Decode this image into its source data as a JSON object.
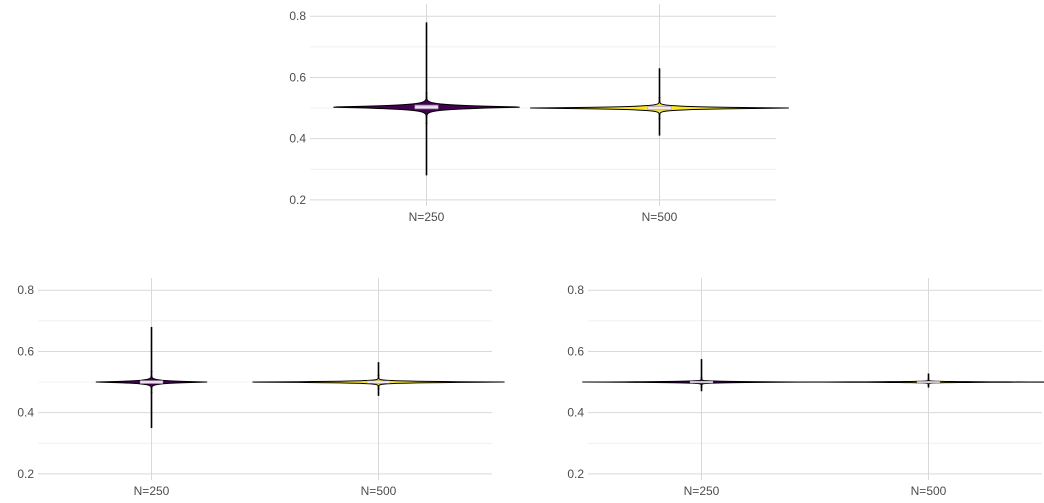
{
  "colors": {
    "N=250": "#440154",
    "N=500": "#fde725",
    "outline": "#000000",
    "box_fill": "#e0d6e6",
    "grid": "#d9d9d9"
  },
  "chart_data": [
    {
      "type": "violin",
      "title": "",
      "xlabel": "",
      "ylabel": "",
      "categories": [
        "N=250",
        "N=500"
      ],
      "y_ticks": [
        "0.2",
        "0.4",
        "0.6",
        "0.8"
      ],
      "ylim": [
        0.18,
        0.84
      ],
      "grid": true,
      "legend": "none",
      "series": [
        {
          "category": "N=250",
          "min": 0.28,
          "q1": 0.497,
          "median": 0.503,
          "q3": 0.51,
          "max": 0.78,
          "body_lo": 0.45,
          "body_hi": 0.55,
          "peak_halfwidth": 0.43
        },
        {
          "category": "N=500",
          "min": 0.41,
          "q1": 0.494,
          "median": 0.5,
          "q3": 0.506,
          "max": 0.63,
          "body_lo": 0.465,
          "body_hi": 0.535,
          "peak_halfwidth": 0.55
        }
      ]
    },
    {
      "type": "violin",
      "title": "",
      "xlabel": "",
      "ylabel": "",
      "categories": [
        "N=250",
        "N=500"
      ],
      "y_ticks": [
        "0.2",
        "0.4",
        "0.6",
        "0.8"
      ],
      "ylim": [
        0.18,
        0.84
      ],
      "grid": true,
      "legend": "none",
      "series": [
        {
          "category": "N=250",
          "min": 0.35,
          "q1": 0.495,
          "median": 0.5,
          "q3": 0.505,
          "max": 0.68,
          "body_lo": 0.465,
          "body_hi": 0.535,
          "peak_halfwidth": 0.24
        },
        {
          "category": "N=500",
          "min": 0.455,
          "q1": 0.496,
          "median": 0.5,
          "q3": 0.504,
          "max": 0.565,
          "body_lo": 0.478,
          "body_hi": 0.522,
          "peak_halfwidth": 0.55
        }
      ]
    },
    {
      "type": "violin",
      "title": "",
      "xlabel": "",
      "ylabel": "",
      "categories": [
        "N=250",
        "N=500"
      ],
      "y_ticks": [
        "0.2",
        "0.4",
        "0.6",
        "0.8"
      ],
      "ylim": [
        0.18,
        0.84
      ],
      "grid": true,
      "legend": "none",
      "series": [
        {
          "category": "N=250",
          "min": 0.47,
          "q1": 0.497,
          "median": 0.5,
          "q3": 0.503,
          "max": 0.575,
          "body_lo": 0.485,
          "body_hi": 0.515,
          "peak_halfwidth": 0.52
        },
        {
          "category": "N=500",
          "min": 0.482,
          "q1": 0.498,
          "median": 0.5,
          "q3": 0.502,
          "max": 0.528,
          "body_lo": 0.49,
          "body_hi": 0.51,
          "peak_halfwidth": 0.55
        }
      ]
    }
  ]
}
